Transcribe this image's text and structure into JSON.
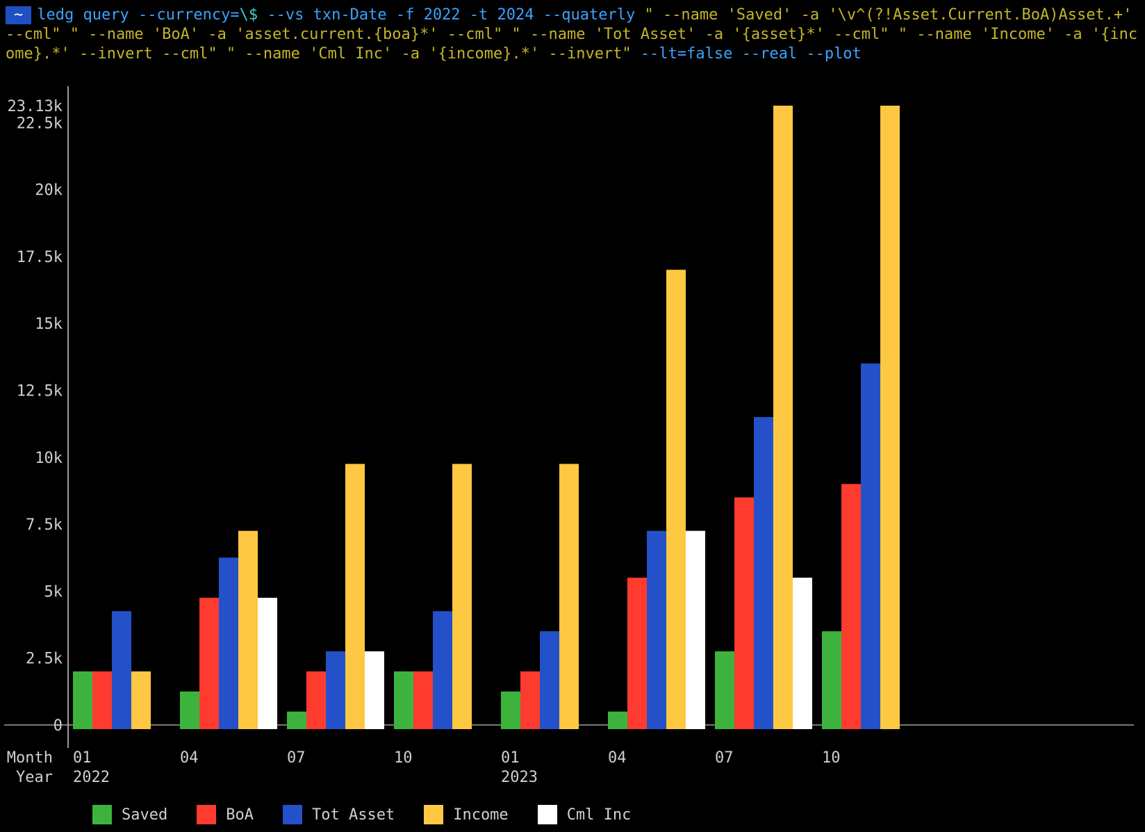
{
  "terminal": {
    "prompt_icon": "~",
    "command_tokens": [
      {
        "text": "ledg query --currency=",
        "style": "cmd"
      },
      {
        "text": "\\$",
        "style": "esc"
      },
      {
        "text": " --vs txn-Date -f 2022 -t 2024 --quaterly ",
        "style": "cmd"
      },
      {
        "text": "\" --name 'Saved' -a '\\v^(?!Asset.Current.BoA)Asset.+' --cml\" \" --name 'BoA' -a 'asset.current.{boa}*' --cml\" \" --name 'Tot Asset' -a '{asset}*' --cml\" \" --name 'Income' -a '{income}.*' --invert --cml\" \" --name 'Cml Inc' -a '{income}.*' --invert\"",
        "style": "q"
      },
      {
        "text": " --lt=false --real --plot",
        "style": "cmd"
      }
    ]
  },
  "chart_data": {
    "type": "bar",
    "ylim": [
      -130,
      23130
    ],
    "y_ticks": [
      {
        "value": 0,
        "label": "0"
      },
      {
        "value": 2500,
        "label": "2.5k"
      },
      {
        "value": 5000,
        "label": "5k"
      },
      {
        "value": 7500,
        "label": "7.5k"
      },
      {
        "value": 10000,
        "label": "10k"
      },
      {
        "value": 12500,
        "label": "12.5k"
      },
      {
        "value": 15000,
        "label": "15k"
      },
      {
        "value": 17500,
        "label": "17.5k"
      },
      {
        "value": 20000,
        "label": "20k"
      },
      {
        "value": 22500,
        "label": "22.5k"
      },
      {
        "value": 23130,
        "label": "23.13k"
      }
    ],
    "x_row_labels": [
      "Month",
      "Year"
    ],
    "categories": [
      {
        "month": "01",
        "year": "2022"
      },
      {
        "month": "04",
        "year": ""
      },
      {
        "month": "07",
        "year": ""
      },
      {
        "month": "10",
        "year": ""
      },
      {
        "month": "01",
        "year": "2023"
      },
      {
        "month": "04",
        "year": ""
      },
      {
        "month": "07",
        "year": ""
      },
      {
        "month": "10",
        "year": ""
      }
    ],
    "series": [
      {
        "name": "Saved",
        "color": "#3db33d",
        "values": [
          2000,
          1250,
          500,
          2000,
          1250,
          500,
          2750,
          3500
        ]
      },
      {
        "name": "BoA",
        "color": "#ff3b30",
        "values": [
          2000,
          4750,
          2000,
          2000,
          2000,
          5500,
          8500,
          9000
        ]
      },
      {
        "name": "Tot Asset",
        "color": "#2451c9",
        "values": [
          4250,
          6250,
          2750,
          4250,
          3500,
          7250,
          11500,
          13500
        ]
      },
      {
        "name": "Income",
        "color": "#ffc843",
        "values": [
          2000,
          7250,
          9750,
          9750,
          9750,
          17000,
          23130,
          23130
        ]
      },
      {
        "name": "Cml Inc",
        "color": "#ffffff",
        "values": [
          null,
          4750,
          2750,
          null,
          null,
          7250,
          5500,
          null
        ]
      }
    ]
  }
}
